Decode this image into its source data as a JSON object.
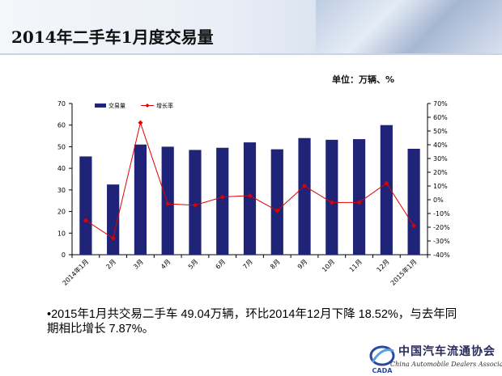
{
  "header": {
    "title": "2014年二手车1月度交易量"
  },
  "unit_label": "单位：万辆、%",
  "summary": "•2015年1月共交易二手车 49.04万辆，环比2014年12月下降 18.52%，与去年同期相比增长 7.87%。",
  "logo": {
    "cn": "中国汽车流通协会",
    "en": "China Automobile Dealers Association",
    "mark": "CADA"
  },
  "colors": {
    "bar": "#1f2478",
    "line": "#e00000"
  },
  "chart_data": {
    "type": "bar",
    "categories": [
      "2014年1月",
      "2月",
      "3月",
      "4月",
      "5月",
      "6月",
      "7月",
      "8月",
      "9月",
      "10月",
      "11月",
      "12月",
      "2015年1月"
    ],
    "series": [
      {
        "name": "交易量",
        "type": "bar",
        "axis": "left",
        "values": [
          45.5,
          32.5,
          51.0,
          50.0,
          48.5,
          49.5,
          52.0,
          48.8,
          54.0,
          53.2,
          53.5,
          60.0,
          49.04
        ]
      },
      {
        "name": "增长率",
        "type": "line",
        "axis": "right",
        "values": [
          -15,
          -28,
          56,
          -3,
          -4,
          2,
          3,
          -8,
          10,
          -2,
          -2,
          12,
          -19
        ]
      }
    ],
    "ylim": [
      0,
      70
    ],
    "yticks": [
      0,
      10,
      20,
      30,
      40,
      50,
      60,
      70
    ],
    "y2lim": [
      -40,
      70
    ],
    "y2ticks": [
      "70%",
      "60%",
      "50%",
      "40%",
      "30%",
      "20%",
      "10%",
      "0%",
      "-10%",
      "-20%",
      "-30%",
      "-40%"
    ],
    "legend": "top-left",
    "grid": false
  }
}
